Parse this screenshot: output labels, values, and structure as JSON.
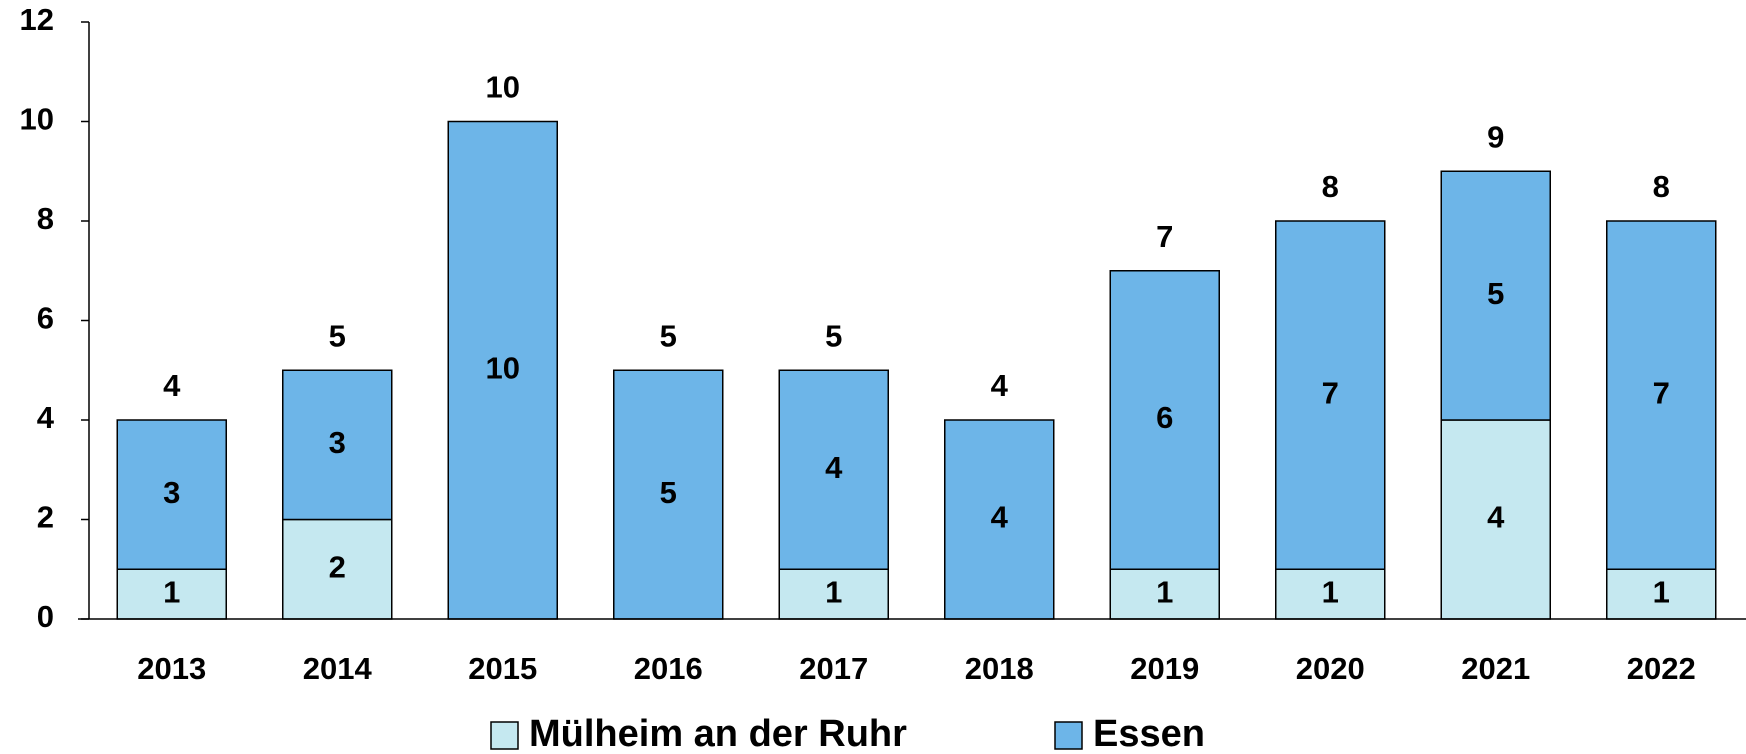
{
  "chart_data": {
    "type": "stacked-bar",
    "categories": [
      "2013",
      "2014",
      "2015",
      "2016",
      "2017",
      "2018",
      "2019",
      "2020",
      "2021",
      "2022"
    ],
    "series": [
      {
        "name": "Mülheim an der Ruhr",
        "color": "#c5e8f0",
        "label_color": "#404040",
        "values": [
          1,
          2,
          0,
          0,
          1,
          0,
          1,
          1,
          4,
          1
        ]
      },
      {
        "name": "Essen",
        "color": "#6db5e8",
        "label_color": "#000000",
        "values": [
          3,
          3,
          10,
          5,
          4,
          4,
          6,
          7,
          5,
          7
        ]
      }
    ],
    "totals": [
      4,
      5,
      10,
      5,
      5,
      4,
      7,
      8,
      9,
      8
    ],
    "ylim": [
      0,
      12
    ],
    "yticks": [
      0,
      2,
      4,
      6,
      8,
      10,
      12
    ],
    "grid": false,
    "legend": "bottom"
  }
}
